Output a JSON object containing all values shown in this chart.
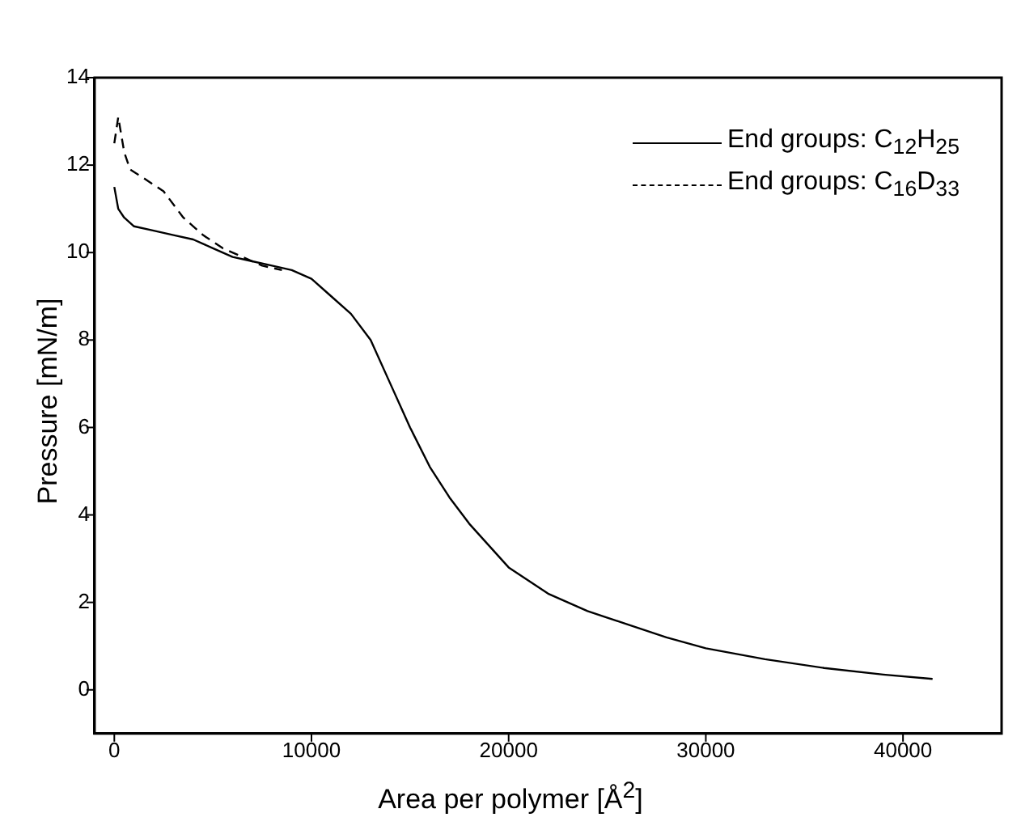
{
  "chart_data": {
    "type": "line",
    "xlabel": "Area per polymer [Å$^{2}$]",
    "ylabel": "Pressure [mN/m]",
    "xlim": [
      -1000,
      45000
    ],
    "xticks": [
      0,
      10000,
      20000,
      30000,
      40000
    ],
    "ylim": [
      -1,
      14
    ],
    "yticks": [
      0,
      2,
      4,
      6,
      8,
      10,
      12,
      14
    ],
    "grid": false,
    "legend": "top right",
    "marker": "none",
    "series": [
      {
        "name": "End groups: C$_{12}$H$_{25}$",
        "color": "#000000",
        "line_style": "solid",
        "x": [
          0,
          200,
          500,
          1000,
          2000,
          3000,
          4000,
          5000,
          6000,
          7000,
          8000,
          9000,
          10000,
          11000,
          12000,
          13000,
          14000,
          15000,
          16000,
          17000,
          18000,
          19000,
          20000,
          22000,
          24000,
          26000,
          28000,
          30000,
          33000,
          36000,
          39000,
          41500
        ],
        "values": [
          11.5,
          11.0,
          10.8,
          10.6,
          10.5,
          10.4,
          10.3,
          10.1,
          9.9,
          9.8,
          9.7,
          9.6,
          9.4,
          9.0,
          8.6,
          8.0,
          7.0,
          6.0,
          5.1,
          4.4,
          3.8,
          3.3,
          2.8,
          2.2,
          1.8,
          1.5,
          1.2,
          0.95,
          0.7,
          0.5,
          0.35,
          0.25
        ]
      },
      {
        "name": "End groups: C$_{16}$D$_{33}$",
        "color": "#000000",
        "line_style": "dashed",
        "x": [
          0,
          200,
          500,
          800,
          1500,
          2500,
          3500,
          4500,
          5500,
          6500,
          7500,
          8500
        ],
        "values": [
          12.5,
          13.1,
          12.3,
          11.9,
          11.7,
          11.4,
          10.8,
          10.4,
          10.1,
          9.9,
          9.7,
          9.6
        ]
      }
    ]
  }
}
